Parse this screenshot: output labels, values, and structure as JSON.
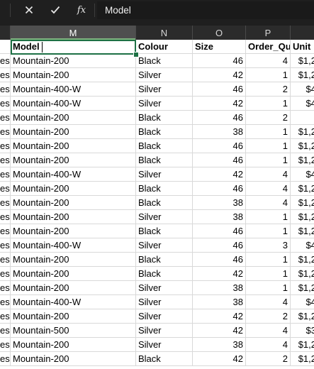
{
  "formula_bar": {
    "cancel_icon": "x-icon",
    "enter_icon": "checkmark-icon",
    "fx_label": "fx",
    "value": "Model"
  },
  "columns": [
    "M",
    "N",
    "O",
    "P",
    ""
  ],
  "header_row": {
    "l": "",
    "m": "Model",
    "n": "Colour",
    "o": "Size",
    "p": "Order_Qu",
    "q": "Unit"
  },
  "rows": [
    {
      "l": "es",
      "m": "Mountain-200",
      "n": "Black",
      "o": "46",
      "p": "4",
      "q": "$1,2"
    },
    {
      "l": "es",
      "m": "Mountain-200",
      "n": "Silver",
      "o": "42",
      "p": "1",
      "q": "$1,2"
    },
    {
      "l": "es",
      "m": "Mountain-400-W",
      "n": "Silver",
      "o": "46",
      "p": "2",
      "q": "$4"
    },
    {
      "l": "es",
      "m": "Mountain-400-W",
      "n": "Silver",
      "o": "42",
      "p": "1",
      "q": "$4"
    },
    {
      "l": "es",
      "m": "Mountain-200",
      "n": "Black",
      "o": "46",
      "p": "2",
      "q": ""
    },
    {
      "l": "es",
      "m": "Mountain-200",
      "n": "Black",
      "o": "38",
      "p": "1",
      "q": "$1,2"
    },
    {
      "l": "es",
      "m": "Mountain-200",
      "n": "Black",
      "o": "46",
      "p": "1",
      "q": "$1,2"
    },
    {
      "l": "es",
      "m": "Mountain-200",
      "n": "Black",
      "o": "46",
      "p": "1",
      "q": "$1,2"
    },
    {
      "l": "es",
      "m": "Mountain-400-W",
      "n": "Silver",
      "o": "42",
      "p": "4",
      "q": "$4"
    },
    {
      "l": "es",
      "m": "Mountain-200",
      "n": "Black",
      "o": "46",
      "p": "4",
      "q": "$1,2"
    },
    {
      "l": "es",
      "m": "Mountain-200",
      "n": "Black",
      "o": "38",
      "p": "4",
      "q": "$1,2"
    },
    {
      "l": "es",
      "m": "Mountain-200",
      "n": "Silver",
      "o": "38",
      "p": "1",
      "q": "$1,2"
    },
    {
      "l": "es",
      "m": "Mountain-200",
      "n": "Black",
      "o": "46",
      "p": "1",
      "q": "$1,2"
    },
    {
      "l": "es",
      "m": "Mountain-400-W",
      "n": "Silver",
      "o": "46",
      "p": "3",
      "q": "$4"
    },
    {
      "l": "es",
      "m": "Mountain-200",
      "n": "Black",
      "o": "46",
      "p": "1",
      "q": "$1,2"
    },
    {
      "l": "es",
      "m": "Mountain-200",
      "n": "Black",
      "o": "42",
      "p": "1",
      "q": "$1,2"
    },
    {
      "l": "es",
      "m": "Mountain-200",
      "n": "Silver",
      "o": "38",
      "p": "1",
      "q": "$1,2"
    },
    {
      "l": "es",
      "m": "Mountain-400-W",
      "n": "Silver",
      "o": "38",
      "p": "4",
      "q": "$4"
    },
    {
      "l": "es",
      "m": "Mountain-200",
      "n": "Silver",
      "o": "42",
      "p": "2",
      "q": "$1,2"
    },
    {
      "l": "es",
      "m": "Mountain-500",
      "n": "Silver",
      "o": "42",
      "p": "4",
      "q": "$3"
    },
    {
      "l": "es",
      "m": "Mountain-200",
      "n": "Silver",
      "o": "38",
      "p": "4",
      "q": "$1,2"
    },
    {
      "l": "es",
      "m": "Mountain-200",
      "n": "Black",
      "o": "42",
      "p": "2",
      "q": "$1,2"
    }
  ],
  "colors": {
    "accent": "#1e7145",
    "header_bg": "#2b2b2b",
    "selected_header_bg": "#4f4f4f"
  }
}
